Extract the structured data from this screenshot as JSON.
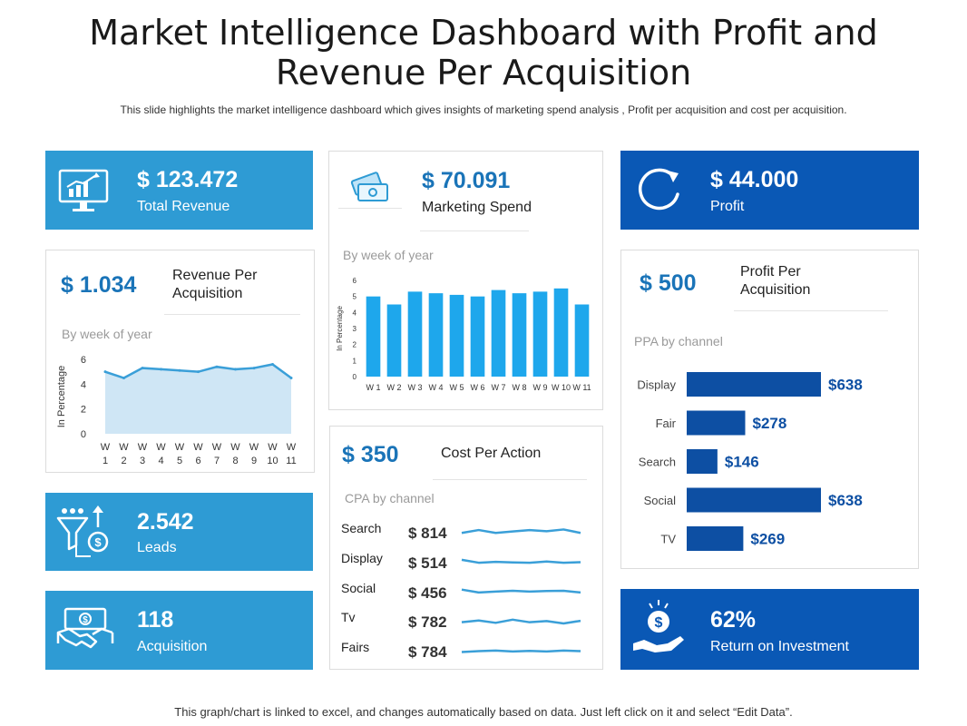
{
  "header": {
    "title_line1": "Market Intelligence Dashboard with Profit and",
    "title_line2": "Revenue Per Acquisition",
    "subtitle": "This slide highlights the market intelligence dashboard which gives insights of marketing spend analysis , Profit per acquisition and cost per acquisition."
  },
  "kpis": {
    "total_revenue": {
      "value": "$ 123.472",
      "label": "Total Revenue",
      "icon": "chart-monitor-icon"
    },
    "marketing_spend": {
      "value": "$ 70.091",
      "label": "Marketing Spend",
      "icon": "money-bills-icon"
    },
    "profit": {
      "value": "$ 44.000",
      "label": "Profit",
      "icon": "refresh-icon"
    },
    "leads": {
      "value": "2.542",
      "label": "Leads",
      "icon": "funnel-icon"
    },
    "acquisition": {
      "value": "118",
      "label": "Acquisition",
      "icon": "handshake-icon"
    },
    "roi": {
      "value": "62%",
      "label": "Return on Investment",
      "icon": "hand-coin-icon"
    }
  },
  "revenue_per_acquisition": {
    "value": "$ 1.034",
    "label_line1": "Revenue Per",
    "label_line2": "Acquisition",
    "chart_caption": "By week of year"
  },
  "marketing_chart": {
    "caption": "By week of year"
  },
  "profit_per_acquisition": {
    "value": "$ 500",
    "label_line1": "Profit Per",
    "label_line2": "Acquisition",
    "chart_caption": "PPA by channel"
  },
  "cost_per_action": {
    "value": "$ 350",
    "label": "Cost Per Action",
    "chart_caption": "CPA by channel"
  },
  "footer": "This graph/chart is linked to excel, and changes automatically based on data. Just left click on it and select “Edit Data”.",
  "colors": {
    "light_blue": "#2e9bd4",
    "dark_blue": "#0a58b5",
    "bar_blue": "#1ea7ec",
    "navy_bar": "#0d4fa3",
    "area_fill": "#cfe6f5",
    "line": "#3a9fd8"
  },
  "chart_data": [
    {
      "type": "area",
      "name": "revenue_per_acquisition",
      "title": "By week of year",
      "ylabel": "In Percentage",
      "x_line1": [
        "W",
        "W",
        "W",
        "W",
        "W",
        "W",
        "W",
        "W",
        "W",
        "W",
        "W"
      ],
      "x_line2": [
        "1",
        "2",
        "3",
        "4",
        "5",
        "6",
        "7",
        "8",
        "9",
        "10",
        "11"
      ],
      "values": [
        5.0,
        4.5,
        5.3,
        5.2,
        5.1,
        5.0,
        5.4,
        5.2,
        5.3,
        5.6,
        4.5
      ],
      "ylim": [
        0,
        6
      ],
      "yticks": [
        0,
        2,
        4,
        6
      ]
    },
    {
      "type": "bar",
      "name": "marketing_spend",
      "title": "By week of year",
      "ylabel": "In Percentage",
      "categories": [
        "W 1",
        "W 2",
        "W 3",
        "W 4",
        "W 5",
        "W 6",
        "W 7",
        "W 8",
        "W 9",
        "W 10",
        "W 11"
      ],
      "values": [
        5.0,
        4.5,
        5.3,
        5.2,
        5.1,
        5.0,
        5.4,
        5.2,
        5.3,
        5.5,
        4.5
      ],
      "ylim": [
        0,
        6
      ],
      "yticks": [
        0,
        1,
        2,
        3,
        4,
        5,
        6
      ]
    },
    {
      "type": "bar",
      "orientation": "horizontal",
      "name": "ppa_by_channel",
      "title": "PPA by channel",
      "categories": [
        "Display",
        "Fair",
        "Search",
        "Social",
        "TV"
      ],
      "values": [
        638,
        278,
        146,
        638,
        269
      ],
      "labels": [
        "$638",
        "$278",
        "$146",
        "$638",
        "$269"
      ],
      "xlim": [
        0,
        638
      ]
    },
    {
      "type": "line",
      "name": "cpa_by_channel",
      "title": "CPA by channel",
      "rows": [
        {
          "name": "Search",
          "value": "$ 814",
          "trend": [
            5,
            6,
            5,
            5.5,
            6,
            5.6,
            6.2,
            5
          ]
        },
        {
          "name": "Display",
          "value": "$ 514",
          "trend": [
            6,
            5,
            5.3,
            5.1,
            5,
            5.4,
            5,
            5.2
          ]
        },
        {
          "name": "Social",
          "value": "$ 456",
          "trend": [
            6,
            5,
            5.3,
            5.6,
            5.3,
            5.5,
            5.6,
            5
          ]
        },
        {
          "name": "Tv",
          "value": "$ 782",
          "trend": [
            5,
            5.6,
            4.8,
            5.9,
            5,
            5.4,
            4.6,
            5.5
          ]
        },
        {
          "name": "Fairs",
          "value": "$ 784",
          "trend": [
            5,
            5.3,
            5.5,
            5.2,
            5.4,
            5.2,
            5.5,
            5.3
          ]
        }
      ]
    }
  ]
}
